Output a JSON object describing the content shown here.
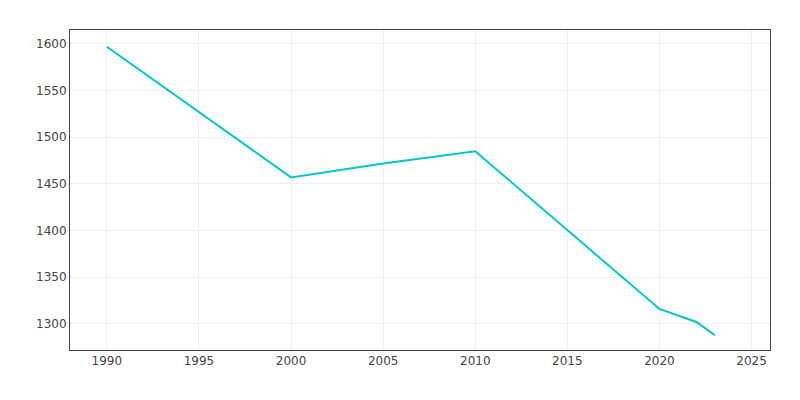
{
  "chart_data": {
    "type": "line",
    "x": [
      1990,
      2000,
      2005,
      2010,
      2020,
      2022,
      2023
    ],
    "values": [
      1597,
      1457,
      1472,
      1485,
      1316,
      1302,
      1288
    ],
    "color": "#00C8C8",
    "xlim": [
      1988,
      2026
    ],
    "ylim": [
      1272,
      1615
    ],
    "xticks": [
      1990,
      1995,
      2000,
      2005,
      2010,
      2015,
      2020,
      2025
    ],
    "yticks": [
      1300,
      1350,
      1400,
      1450,
      1500,
      1550,
      1600
    ],
    "grid": true
  }
}
